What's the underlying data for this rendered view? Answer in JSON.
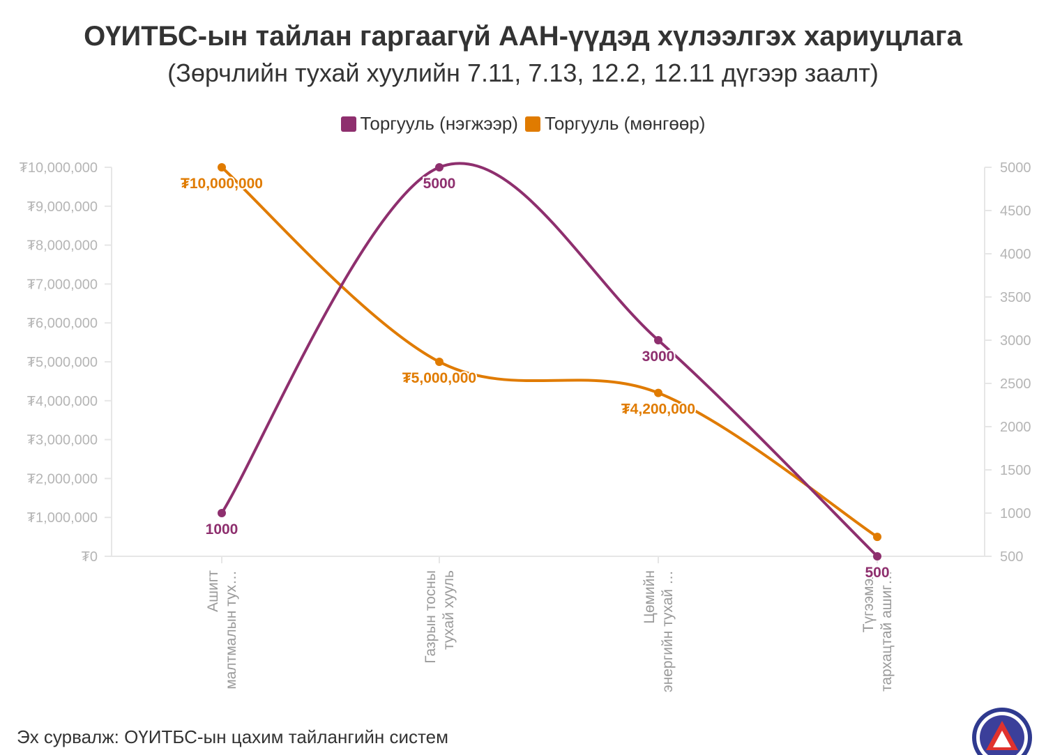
{
  "header": {
    "title": "ОҮИТБС-ын тайлан гаргаагүй ААН-үүдэд хүлээлгэх хариуцлага",
    "subtitle": "(Зөрчлийн тухай хуулийн 7.11, 7.13, 12.2, 12.11 дүгээр заалт)"
  },
  "legend": [
    {
      "label": "Торгууль (нэгжээр)",
      "color": "#8e2f6e"
    },
    {
      "label": "Торгууль (мөнгөөр)",
      "color": "#e07b00"
    }
  ],
  "chart_data": {
    "type": "line",
    "categories": [
      [
        "Ашигт",
        "малтмалын тух…"
      ],
      [
        "Газрын тосны",
        "тухай хууль"
      ],
      [
        "Цөмийн",
        "энергийн тухай …"
      ],
      [
        "Түгээмэл",
        "тархацтай ашиг…"
      ]
    ],
    "series": [
      {
        "name": "Торгууль (нэгжээр)",
        "axis": "right",
        "color": "#8e2f6e",
        "values": [
          1000,
          5000,
          3000,
          500
        ],
        "labels": [
          "1000",
          "5000",
          "3000",
          "500"
        ]
      },
      {
        "name": "Торгууль (мөнгөөр)",
        "axis": "left",
        "color": "#e07b00",
        "values": [
          10000000,
          5000000,
          4200000,
          500000
        ],
        "labels": [
          "₮10,000,000",
          "₮5,000,000",
          "₮4,200,000",
          ""
        ]
      }
    ],
    "left_axis": {
      "min": 0,
      "max": 10000000,
      "ticks": [
        "₮0",
        "₮1,000,000",
        "₮2,000,000",
        "₮3,000,000",
        "₮4,000,000",
        "₮5,000,000",
        "₮6,000,000",
        "₮7,000,000",
        "₮8,000,000",
        "₮9,000,000",
        "₮10,000,000"
      ]
    },
    "right_axis": {
      "min": 500,
      "max": 5000,
      "ticks": [
        "500",
        "1000",
        "1500",
        "2000",
        "2500",
        "3000",
        "3500",
        "4000",
        "4500",
        "5000"
      ]
    },
    "grid": false,
    "legend_position": "top-center"
  },
  "footer": {
    "source": "Эх сурвалж: ОҮИТБС-ын цахим тайлангийн систем"
  }
}
